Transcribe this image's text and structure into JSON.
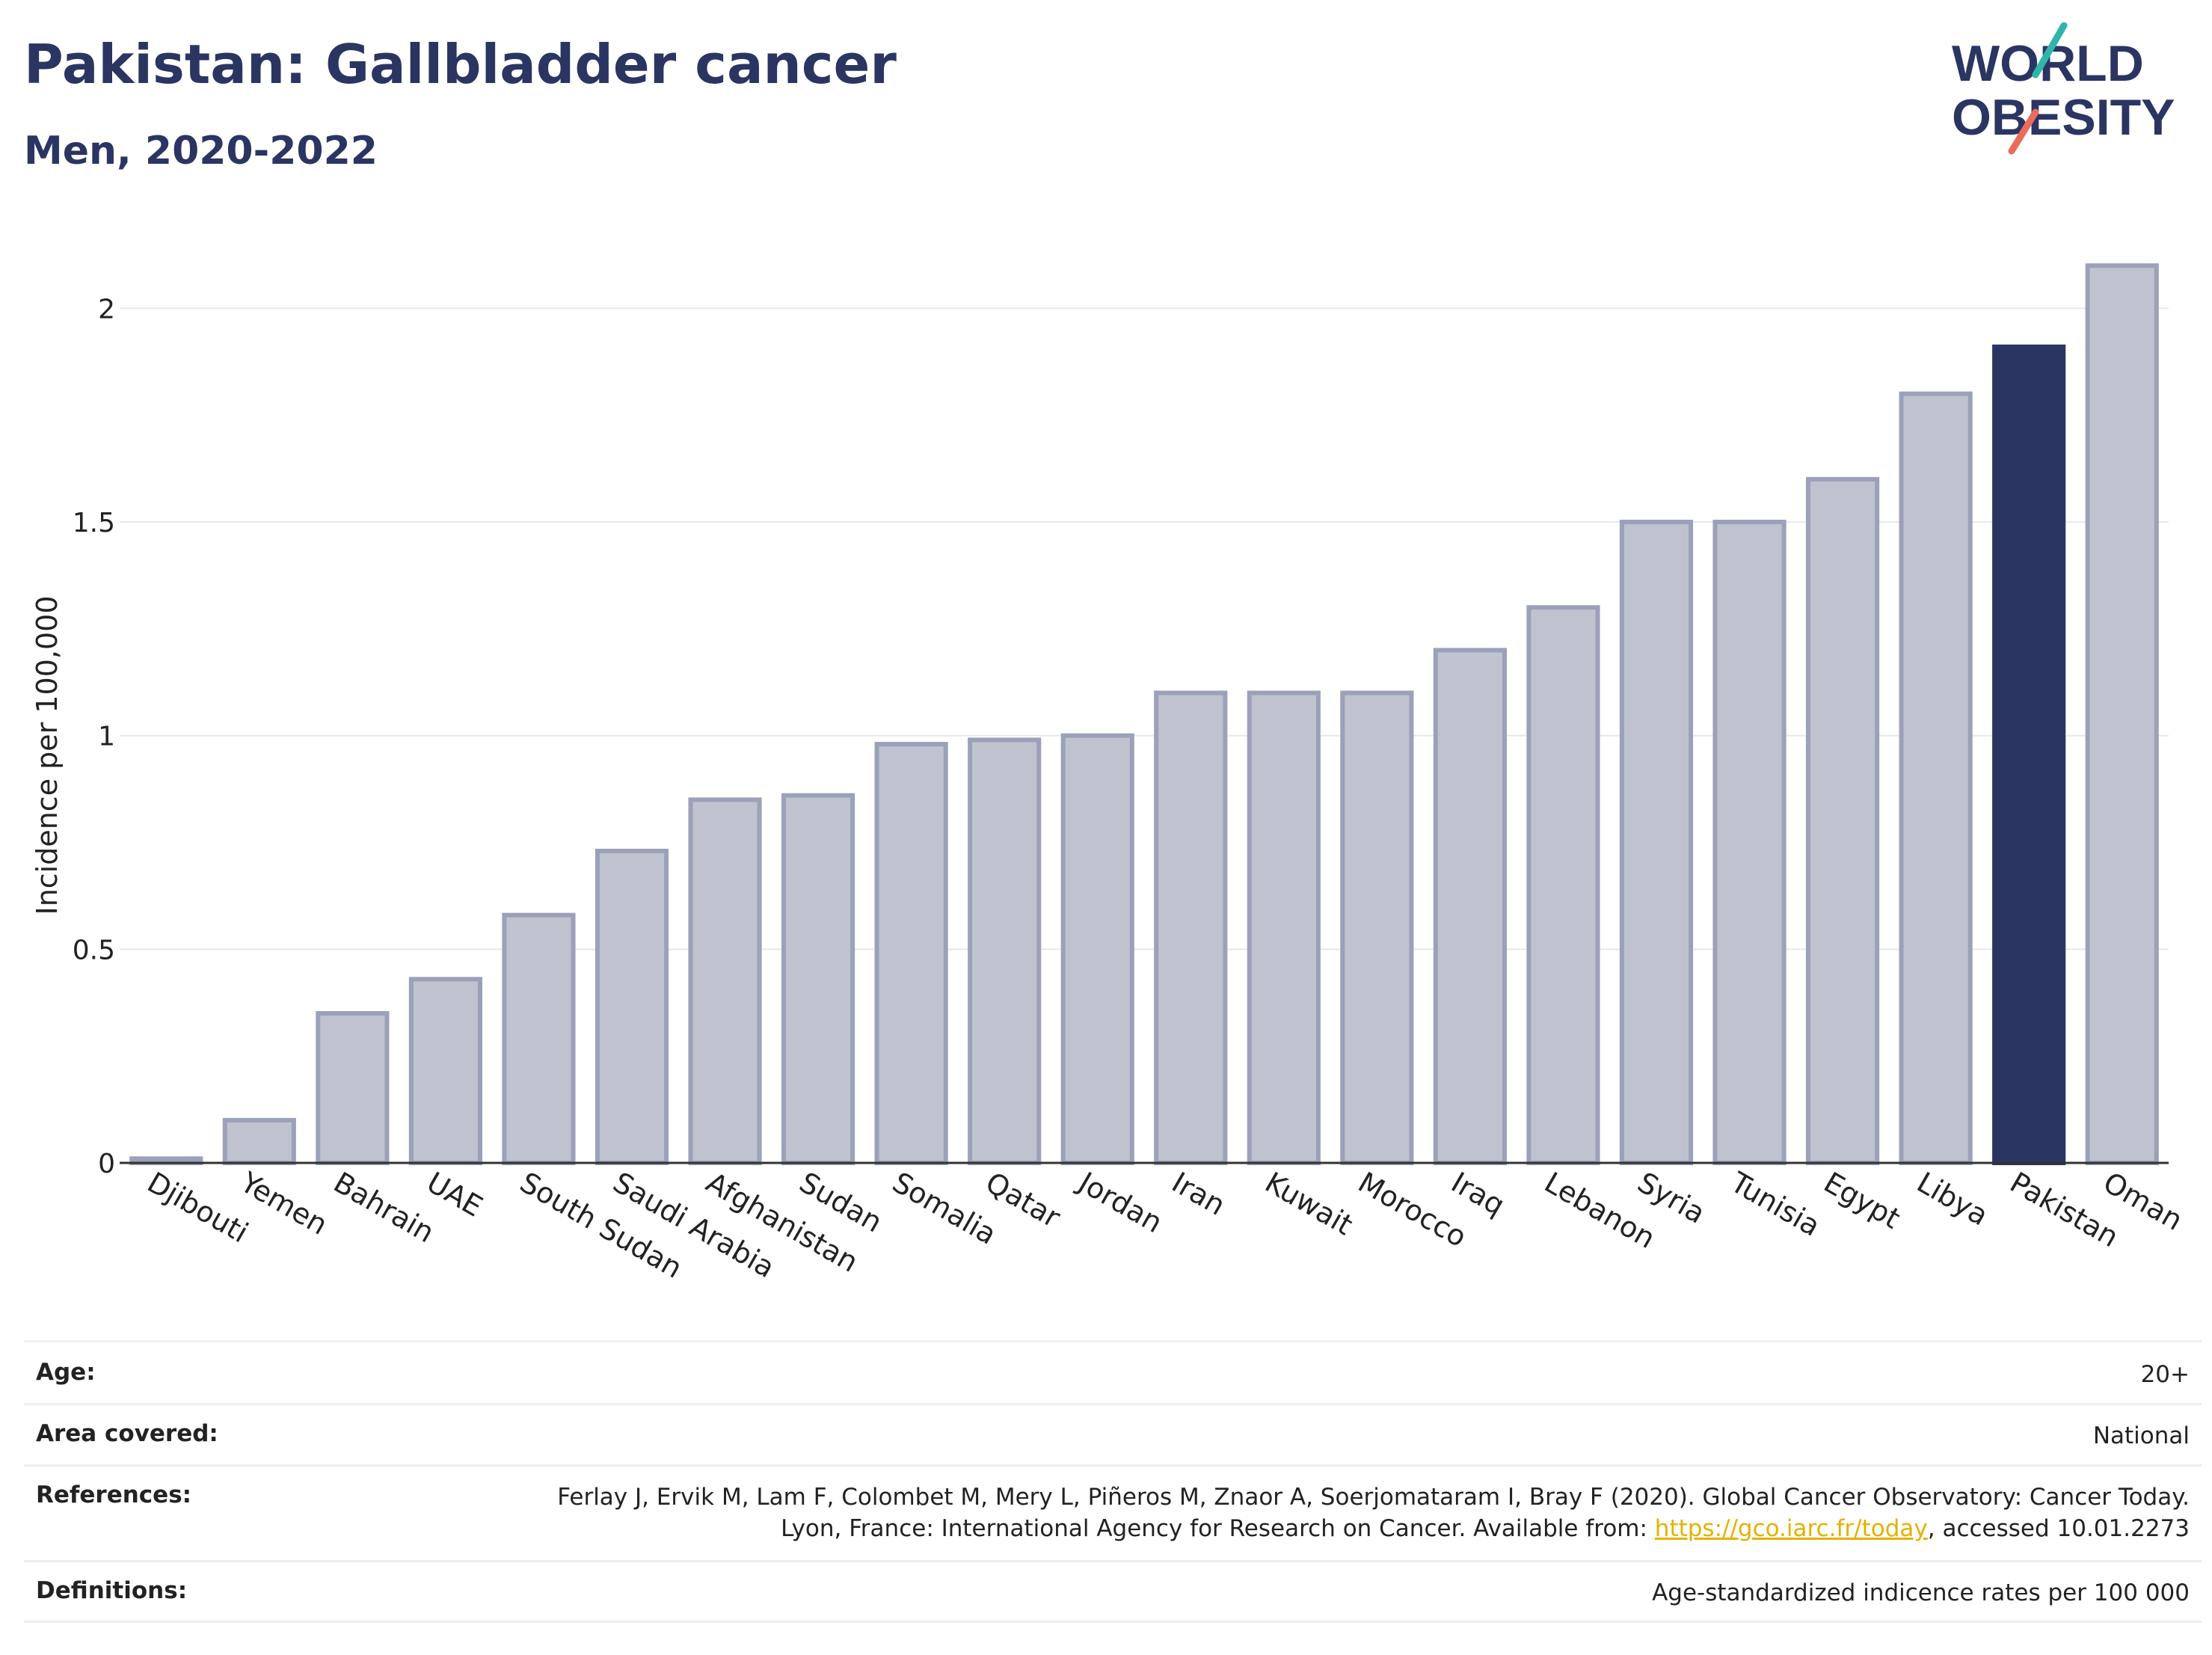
{
  "header": {
    "title": "Pakistan: Gallbladder cancer",
    "subtitle": "Men, 2020-2022"
  },
  "logo": {
    "line1": "WORLD",
    "line2": "OBESITY"
  },
  "chart_data": {
    "type": "bar",
    "title": "Pakistan: Gallbladder cancer",
    "subtitle": "Men, 2020-2022",
    "ylabel": "Incidence per 100,000",
    "xlabel": "",
    "ylim": [
      0,
      2.2
    ],
    "yticks": [
      0,
      0.5,
      1,
      1.5,
      2
    ],
    "ytick_labels": [
      "0",
      "0.5",
      "1",
      "1.5",
      "2"
    ],
    "grid": true,
    "categories": [
      "Djibouti",
      "Yemen",
      "Bahrain",
      "UAE",
      "South Sudan",
      "Saudi Arabia",
      "Afghanistan",
      "Sudan",
      "Somalia",
      "Qatar",
      "Jordan",
      "Iran",
      "Kuwait",
      "Morocco",
      "Iraq",
      "Lebanon",
      "Syria",
      "Tunisia",
      "Egypt",
      "Libya",
      "Pakistan",
      "Oman"
    ],
    "values": [
      0.01,
      0.1,
      0.35,
      0.43,
      0.58,
      0.73,
      0.85,
      0.86,
      0.98,
      0.99,
      1.0,
      1.1,
      1.1,
      1.1,
      1.2,
      1.3,
      1.5,
      1.5,
      1.6,
      1.8,
      1.91,
      2.1
    ],
    "highlight": "Pakistan",
    "colors": {
      "bar": "#bfc3cf",
      "bar_edge": "#9aa1b8",
      "highlight": "#2b3562",
      "grid": "#e6e8ee",
      "axis": "#333333"
    }
  },
  "meta": {
    "rows": [
      {
        "label": "Age:",
        "value": "20+"
      },
      {
        "label": "Area covered:",
        "value": "National"
      },
      {
        "label": "References:",
        "value_pre": "Ferlay J, Ervik M, Lam F, Colombet M, Mery L, Piñeros M, Znaor A, Soerjomataram I, Bray F (2020). Global Cancer Observatory: Cancer Today. Lyon, France: International Agency for Research on Cancer. Available from: ",
        "link": "https://gco.iarc.fr/today",
        "value_post": ", accessed 10.01.2273"
      },
      {
        "label": "Definitions:",
        "value": "Age-standardized indicence rates per 100 000"
      }
    ]
  }
}
